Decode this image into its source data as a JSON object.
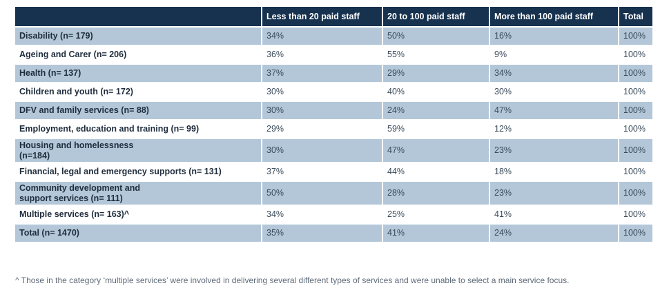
{
  "table": {
    "headers": [
      "",
      "Less than 20 paid staff",
      "20 to 100 paid staff",
      "More than 100 paid staff",
      "Total"
    ],
    "rows": [
      {
        "label": "Disability (n= 179)",
        "values": [
          "34%",
          "50%",
          "16%",
          "100%"
        ]
      },
      {
        "label": "Ageing and Carer (n= 206)",
        "values": [
          "36%",
          "55%",
          "9%",
          "100%"
        ]
      },
      {
        "label": "Health (n= 137)",
        "values": [
          "37%",
          "29%",
          "34%",
          "100%"
        ]
      },
      {
        "label": "Children and youth (n= 172)",
        "values": [
          "30%",
          "40%",
          "30%",
          "100%"
        ]
      },
      {
        "label": "DFV and family services (n= 88)",
        "values": [
          "30%",
          "24%",
          "47%",
          "100%"
        ]
      },
      {
        "label": "Employment, education and training (n= 99)",
        "values": [
          "29%",
          "59%",
          "12%",
          "100%"
        ]
      },
      {
        "label": "Housing and homelessness (n=184)",
        "values": [
          "30%",
          "47%",
          "23%",
          "100%"
        ]
      },
      {
        "label": "Financial, legal and emergency supports (n= 131)",
        "values": [
          "37%",
          "44%",
          "18%",
          "100%"
        ]
      },
      {
        "label": "Community development and support services (n= 111)",
        "values": [
          "50%",
          "28%",
          "23%",
          "100%"
        ]
      },
      {
        "label": "Multiple services (n= 163)^",
        "values": [
          "34%",
          "25%",
          "41%",
          "100%"
        ]
      },
      {
        "label": "Total (n= 1470)",
        "values": [
          "35%",
          "41%",
          "24%",
          "100%"
        ]
      }
    ]
  },
  "footnote": "^ Those in the category ‘multiple services’ were involved in delivering several different types of services and were unable to select a main service focus.",
  "colors": {
    "header_bg": "#17324f",
    "row_shade": "#b3c7d8",
    "row_plain": "#ffffff"
  }
}
